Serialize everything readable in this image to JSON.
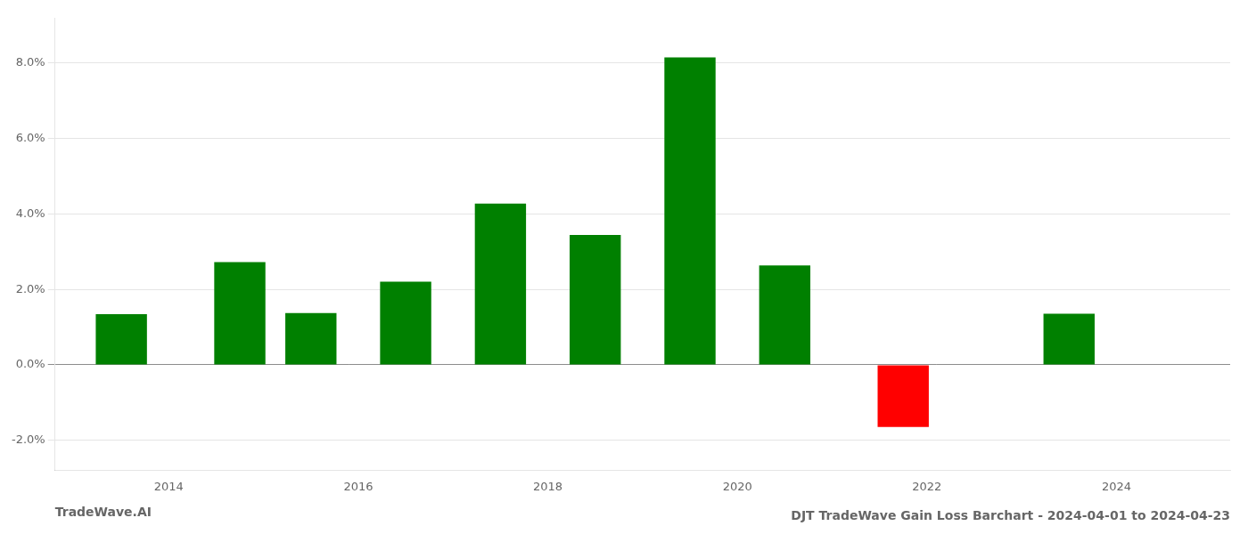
{
  "chart_data": {
    "type": "bar",
    "title": "DJT TradeWave Gain Loss Barchart - 2024-04-01 to 2024-04-23",
    "annotations": [
      "TradeWave.AI"
    ],
    "x": [
      2013.5,
      2014.75,
      2015.5,
      2016.5,
      2017.5,
      2018.5,
      2019.5,
      2020.5,
      2021.75,
      2023.5
    ],
    "values": [
      0.01345,
      0.02725,
      0.01375,
      0.02205,
      0.04275,
      0.03445,
      0.0815,
      0.02635,
      -0.01645,
      0.01355
    ],
    "colors": [
      "#008000",
      "#008000",
      "#008000",
      "#008000",
      "#008000",
      "#008000",
      "#008000",
      "#008000",
      "#ff0000",
      "#008000"
    ],
    "xlim": [
      2012.8,
      2025.2
    ],
    "xticks": [
      2014,
      2016,
      2018,
      2020,
      2022,
      2024
    ],
    "ylim": [
      -0.028,
      0.092
    ],
    "yticks": [
      {
        "value": -0.02,
        "label": "-2.0%"
      },
      {
        "value": 0.0,
        "label": "0.0%"
      },
      {
        "value": 0.02,
        "label": "2.0%"
      },
      {
        "value": 0.04,
        "label": "4.0%"
      },
      {
        "value": 0.06,
        "label": "6.0%"
      },
      {
        "value": 0.08,
        "label": "8.0%"
      }
    ],
    "grid": true
  }
}
